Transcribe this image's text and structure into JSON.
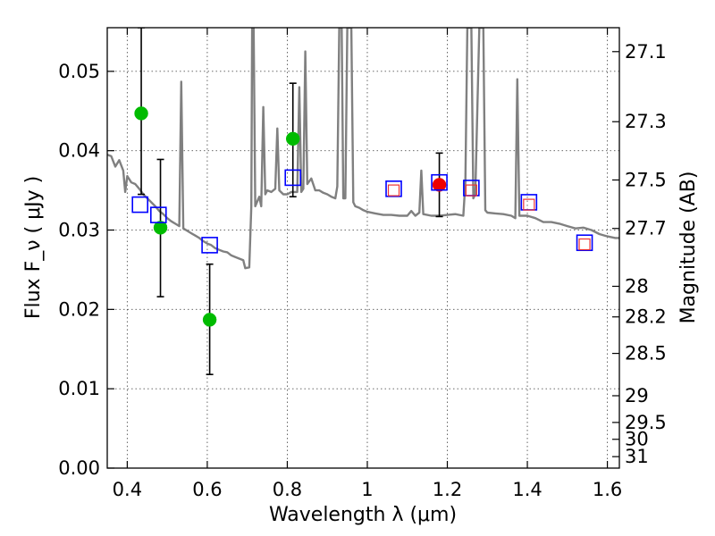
{
  "chart_data": {
    "type": "scatter",
    "xlabel": "Wavelength  λ (μm)",
    "ylabel": "Flux  F_ν  ( μJy )",
    "ylabel_right": "Magnitude (AB)",
    "xlim": [
      0.35,
      1.63
    ],
    "ylim": [
      0.0,
      0.0555
    ],
    "grid": true,
    "x_ticks": [
      {
        "value": 0.4,
        "label": "0.4"
      },
      {
        "value": 0.6,
        "label": "0.6"
      },
      {
        "value": 0.8,
        "label": "0.8"
      },
      {
        "value": 1.0,
        "label": "1"
      },
      {
        "value": 1.2,
        "label": "1.2"
      },
      {
        "value": 1.4,
        "label": "1.4"
      },
      {
        "value": 1.6,
        "label": "1.6"
      }
    ],
    "y_ticks": [
      {
        "value": 0.0,
        "label": "0.00"
      },
      {
        "value": 0.01,
        "label": "0.01"
      },
      {
        "value": 0.02,
        "label": "0.02"
      },
      {
        "value": 0.03,
        "label": "0.03"
      },
      {
        "value": 0.04,
        "label": "0.04"
      },
      {
        "value": 0.05,
        "label": "0.05"
      }
    ],
    "mag_ticks": [
      {
        "mag": 27.1,
        "label": "27.1"
      },
      {
        "mag": 27.3,
        "label": "27.3"
      },
      {
        "mag": 27.5,
        "label": "27.5"
      },
      {
        "mag": 27.7,
        "label": "27.7"
      },
      {
        "mag": 28.0,
        "label": "28"
      },
      {
        "mag": 28.2,
        "label": "28.2"
      },
      {
        "mag": 28.5,
        "label": "28.5"
      },
      {
        "mag": 29.0,
        "label": "29"
      },
      {
        "mag": 29.5,
        "label": "29.5"
      },
      {
        "mag": 30.0,
        "label": "30"
      },
      {
        "mag": 31.0,
        "label": "31"
      }
    ],
    "series": [
      {
        "name": "model-spectrum",
        "kind": "line",
        "color": "#808080",
        "points": [
          [
            0.35,
            0.0395
          ],
          [
            0.36,
            0.0393
          ],
          [
            0.37,
            0.038
          ],
          [
            0.38,
            0.0388
          ],
          [
            0.39,
            0.0375
          ],
          [
            0.395,
            0.0348
          ],
          [
            0.4,
            0.0368
          ],
          [
            0.41,
            0.036
          ],
          [
            0.42,
            0.0358
          ],
          [
            0.43,
            0.0352
          ],
          [
            0.44,
            0.0345
          ],
          [
            0.45,
            0.034
          ],
          [
            0.46,
            0.0335
          ],
          [
            0.47,
            0.033
          ],
          [
            0.48,
            0.0324
          ],
          [
            0.49,
            0.032
          ],
          [
            0.5,
            0.0315
          ],
          [
            0.51,
            0.0311
          ],
          [
            0.52,
            0.0308
          ],
          [
            0.53,
            0.0305
          ],
          [
            0.535,
            0.0487
          ],
          [
            0.54,
            0.0302
          ],
          [
            0.55,
            0.0299
          ],
          [
            0.56,
            0.0296
          ],
          [
            0.57,
            0.0293
          ],
          [
            0.58,
            0.029
          ],
          [
            0.59,
            0.0286
          ],
          [
            0.6,
            0.0283
          ],
          [
            0.61,
            0.0281
          ],
          [
            0.62,
            0.0277
          ],
          [
            0.63,
            0.0275
          ],
          [
            0.64,
            0.0273
          ],
          [
            0.65,
            0.0272
          ],
          [
            0.66,
            0.0268
          ],
          [
            0.67,
            0.0266
          ],
          [
            0.68,
            0.0264
          ],
          [
            0.69,
            0.0262
          ],
          [
            0.695,
            0.0252
          ],
          [
            0.705,
            0.0253
          ],
          [
            0.71,
            0.033
          ],
          [
            0.712,
            0.0555
          ],
          [
            0.716,
            0.0555
          ],
          [
            0.72,
            0.033
          ],
          [
            0.73,
            0.0342
          ],
          [
            0.735,
            0.033
          ],
          [
            0.74,
            0.0455
          ],
          [
            0.745,
            0.0345
          ],
          [
            0.75,
            0.035
          ],
          [
            0.76,
            0.0348
          ],
          [
            0.77,
            0.0352
          ],
          [
            0.775,
            0.0428
          ],
          [
            0.78,
            0.035
          ],
          [
            0.79,
            0.0345
          ],
          [
            0.8,
            0.0345
          ],
          [
            0.81,
            0.0348
          ],
          [
            0.825,
            0.0348
          ],
          [
            0.83,
            0.048
          ],
          [
            0.835,
            0.0348
          ],
          [
            0.84,
            0.0352
          ],
          [
            0.845,
            0.0525
          ],
          [
            0.85,
            0.0358
          ],
          [
            0.86,
            0.0365
          ],
          [
            0.87,
            0.035
          ],
          [
            0.88,
            0.035
          ],
          [
            0.89,
            0.0347
          ],
          [
            0.9,
            0.0345
          ],
          [
            0.91,
            0.0342
          ],
          [
            0.92,
            0.034
          ],
          [
            0.925,
            0.0355
          ],
          [
            0.93,
            0.0555
          ],
          [
            0.936,
            0.0555
          ],
          [
            0.94,
            0.034
          ],
          [
            0.945,
            0.034
          ],
          [
            0.95,
            0.0555
          ],
          [
            0.96,
            0.0555
          ],
          [
            0.965,
            0.0335
          ],
          [
            0.97,
            0.033
          ],
          [
            0.98,
            0.0328
          ],
          [
            0.99,
            0.0325
          ],
          [
            1.0,
            0.0323
          ],
          [
            1.02,
            0.0321
          ],
          [
            1.04,
            0.0319
          ],
          [
            1.06,
            0.0319
          ],
          [
            1.08,
            0.0318
          ],
          [
            1.1,
            0.0318
          ],
          [
            1.11,
            0.0324
          ],
          [
            1.12,
            0.0318
          ],
          [
            1.13,
            0.0322
          ],
          [
            1.135,
            0.0375
          ],
          [
            1.14,
            0.032
          ],
          [
            1.16,
            0.0318
          ],
          [
            1.18,
            0.0318
          ],
          [
            1.2,
            0.0319
          ],
          [
            1.22,
            0.032
          ],
          [
            1.24,
            0.0318
          ],
          [
            1.245,
            0.036
          ],
          [
            1.25,
            0.0555
          ],
          [
            1.26,
            0.0555
          ],
          [
            1.265,
            0.034
          ],
          [
            1.27,
            0.0345
          ],
          [
            1.28,
            0.0555
          ],
          [
            1.29,
            0.0555
          ],
          [
            1.295,
            0.0325
          ],
          [
            1.3,
            0.0322
          ],
          [
            1.32,
            0.0321
          ],
          [
            1.34,
            0.032
          ],
          [
            1.36,
            0.0318
          ],
          [
            1.37,
            0.0315
          ],
          [
            1.375,
            0.049
          ],
          [
            1.38,
            0.0318
          ],
          [
            1.4,
            0.0318
          ],
          [
            1.42,
            0.0315
          ],
          [
            1.44,
            0.031
          ],
          [
            1.46,
            0.031
          ],
          [
            1.48,
            0.0308
          ],
          [
            1.5,
            0.0305
          ],
          [
            1.52,
            0.0302
          ],
          [
            1.54,
            0.0303
          ],
          [
            1.56,
            0.03
          ],
          [
            1.58,
            0.0295
          ],
          [
            1.6,
            0.0292
          ],
          [
            1.62,
            0.029
          ],
          [
            1.63,
            0.029
          ]
        ]
      },
      {
        "name": "observed-detections",
        "kind": "points",
        "marker": "filled-circle",
        "color": "#00bb00",
        "points": [
          {
            "x": 0.435,
            "y": 0.0447,
            "err_low": 0.0345,
            "err_high": 0.0555
          },
          {
            "x": 0.483,
            "y": 0.0303,
            "err_low": 0.0216,
            "err_high": 0.0389
          },
          {
            "x": 0.606,
            "y": 0.0187,
            "err_low": 0.0118,
            "err_high": 0.0257
          },
          {
            "x": 0.814,
            "y": 0.0415,
            "err_low": 0.0342,
            "err_high": 0.0485
          }
        ]
      },
      {
        "name": "observed-ir-detection",
        "kind": "points",
        "marker": "filled-circle",
        "color": "#ee0000",
        "points": [
          {
            "x": 1.18,
            "y": 0.0357,
            "err_low": 0.0317,
            "err_high": 0.0397
          }
        ]
      },
      {
        "name": "model-synthetic-photometry",
        "kind": "points",
        "marker": "open-square",
        "color": "#0000ff",
        "points": [
          {
            "x": 0.432,
            "y": 0.0332
          },
          {
            "x": 0.478,
            "y": 0.0319
          },
          {
            "x": 0.606,
            "y": 0.0281
          },
          {
            "x": 0.814,
            "y": 0.0366
          },
          {
            "x": 1.066,
            "y": 0.0352
          },
          {
            "x": 1.18,
            "y": 0.036
          },
          {
            "x": 1.26,
            "y": 0.0353
          },
          {
            "x": 1.404,
            "y": 0.0335
          },
          {
            "x": 1.543,
            "y": 0.0284
          }
        ]
      },
      {
        "name": "ir-model-points",
        "kind": "points",
        "marker": "small-open-square",
        "color": "#ee3333",
        "points": [
          {
            "x": 1.066,
            "y": 0.035
          },
          {
            "x": 1.26,
            "y": 0.035
          },
          {
            "x": 1.404,
            "y": 0.0332
          },
          {
            "x": 1.543,
            "y": 0.0282
          }
        ]
      }
    ]
  }
}
